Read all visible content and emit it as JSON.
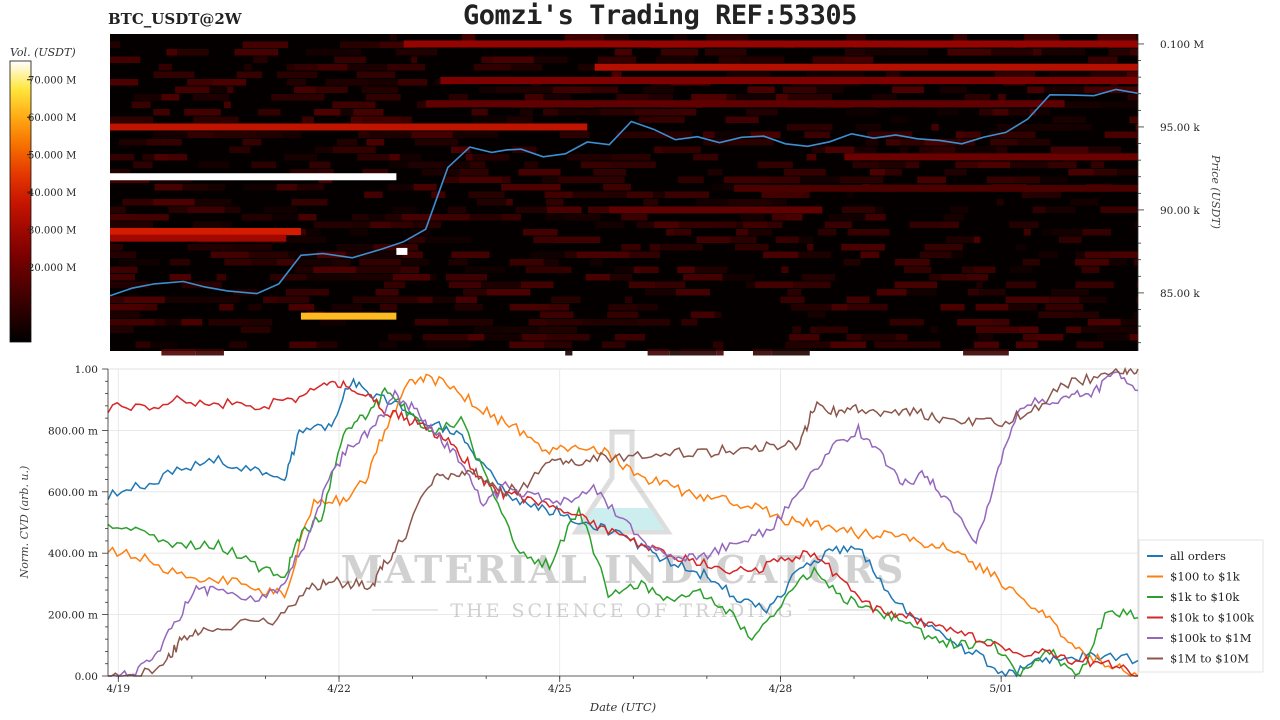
{
  "header": {
    "symbol": "BTC_USDT@2W",
    "title": "Gomzi's Trading REF:53305"
  },
  "watermark": {
    "line1": "MATERIAL INDICATORS",
    "line2": "THE SCIENCE OF TRADING"
  },
  "colors": {
    "all_orders": "#1f77b4",
    "b100_1k": "#ff7f0e",
    "b1k_10k": "#2ca02c",
    "b10k_100k": "#d62728",
    "b100k_1m": "#9467bd",
    "b1m_10m": "#8c564b",
    "price_line": "#3d8fd1",
    "heatmap_bg": "#050000"
  },
  "chart_data": [
    {
      "type": "heatmap",
      "title": "Gomzi's Trading REF:53305",
      "colorbar_label": "Vol. (USDT)",
      "colorbar_ticks": [
        "70.000 M",
        "60.000 M",
        "50.000 M",
        "40.000 M",
        "30.000 M",
        "20.000 M"
      ],
      "colorbar_values": [
        70,
        60,
        50,
        40,
        30,
        20
      ],
      "colorbar_range": [
        0,
        75
      ],
      "ylabel": "Price (USDT)",
      "yaxis_side": "right",
      "ylim": [
        81500,
        100600
      ],
      "y_ticks": [
        {
          "value": 100000,
          "label": "0.100 M"
        },
        {
          "value": 95000,
          "label": "95.00 k"
        },
        {
          "value": 90000,
          "label": "90.00 k"
        },
        {
          "value": 85000,
          "label": "85.00 k"
        }
      ],
      "x_range_days": [
        0,
        14
      ],
      "price_line": {
        "t": [
          0.0,
          0.3,
          0.6,
          1.0,
          1.3,
          1.6,
          2.0,
          2.3,
          2.6,
          2.9,
          3.3,
          3.7,
          4.0,
          4.3,
          4.6,
          4.9,
          5.2,
          5.4,
          5.6,
          5.9,
          6.2,
          6.5,
          6.8,
          7.1,
          7.4,
          7.7,
          8.0,
          8.3,
          8.6,
          8.9,
          9.2,
          9.5,
          9.8,
          10.1,
          10.4,
          10.7,
          11.0,
          11.3,
          11.6,
          11.9,
          12.2,
          12.5,
          12.8,
          13.1,
          13.4,
          13.7,
          14.0
        ],
        "price": [
          84800,
          85300,
          85500,
          85600,
          85400,
          85200,
          84900,
          85500,
          87300,
          87400,
          87200,
          87600,
          88100,
          88900,
          92500,
          93800,
          93500,
          93600,
          93700,
          93200,
          93300,
          94100,
          94000,
          95300,
          94800,
          94300,
          94500,
          94100,
          94400,
          94500,
          94000,
          93800,
          94100,
          94600,
          94300,
          94500,
          94300,
          94200,
          93900,
          94300,
          94600,
          95400,
          96900,
          97000,
          96800,
          97300,
          97000
        ]
      },
      "bands": [
        {
          "price": 92000,
          "from": 0.0,
          "to": 3.9,
          "level": 75
        },
        {
          "price": 88700,
          "from": 0.0,
          "to": 2.6,
          "level": 40
        },
        {
          "price": 88300,
          "from": 0.0,
          "to": 2.4,
          "level": 30
        },
        {
          "price": 83600,
          "from": 2.6,
          "to": 3.9,
          "level": 62
        },
        {
          "price": 87500,
          "from": 3.9,
          "to": 4.05,
          "level": 75
        },
        {
          "price": 95000,
          "from": 0.0,
          "to": 6.5,
          "level": 36
        },
        {
          "price": 98600,
          "from": 6.6,
          "to": 14.0,
          "level": 34
        },
        {
          "price": 100000,
          "from": 4.0,
          "to": 14.0,
          "level": 28
        },
        {
          "price": 97800,
          "from": 4.5,
          "to": 14.0,
          "level": 24
        },
        {
          "price": 93200,
          "from": 10.0,
          "to": 14.0,
          "level": 20
        },
        {
          "price": 90000,
          "from": 6.8,
          "to": 9.7,
          "level": 18
        },
        {
          "price": 91300,
          "from": 8.5,
          "to": 14.0,
          "level": 14
        },
        {
          "price": 96400,
          "from": 4.3,
          "to": 13.0,
          "level": 18
        }
      ]
    },
    {
      "type": "line",
      "ylabel": "Norm. CVD (arb. u.)",
      "xlabel": "Date (UTC)",
      "ylim": [
        0,
        1
      ],
      "y_ticks": [
        {
          "value": 0,
          "label": "0.00"
        },
        {
          "value": 0.2,
          "label": "200.00 m"
        },
        {
          "value": 0.4,
          "label": "400.00 m"
        },
        {
          "value": 0.6,
          "label": "600.00 m"
        },
        {
          "value": 0.8,
          "label": "800.00 m"
        },
        {
          "value": 1.0,
          "label": "1.00"
        }
      ],
      "x_ticks": [
        {
          "t": 0.14,
          "label": "4/19"
        },
        {
          "t": 3.14,
          "label": "4/22"
        },
        {
          "t": 6.14,
          "label": "4/25"
        },
        {
          "t": 9.14,
          "label": "4/28"
        },
        {
          "t": 12.14,
          "label": "5/01"
        }
      ],
      "x_range_days": [
        0,
        14
      ],
      "legend_position": "right",
      "series": [
        {
          "name": "all orders",
          "color_key": "all_orders",
          "t": [
            0,
            0.5,
            1,
            1.5,
            2,
            2.4,
            2.6,
            3.0,
            3.3,
            3.6,
            4.0,
            4.3,
            4.7,
            5.0,
            5.4,
            5.8,
            6.2,
            6.6,
            7.0,
            7.4,
            7.8,
            8.2,
            8.6,
            9.0,
            9.4,
            9.8,
            10.2,
            10.6,
            11.0,
            11.4,
            11.8,
            12.2,
            12.6,
            13.0,
            13.4,
            14.0
          ],
          "values": [
            0.59,
            0.62,
            0.68,
            0.7,
            0.67,
            0.65,
            0.79,
            0.81,
            0.96,
            0.92,
            0.87,
            0.83,
            0.8,
            0.72,
            0.59,
            0.55,
            0.53,
            0.49,
            0.46,
            0.4,
            0.36,
            0.32,
            0.24,
            0.22,
            0.35,
            0.4,
            0.42,
            0.28,
            0.18,
            0.12,
            0.07,
            0.0,
            0.04,
            0.06,
            0.07,
            0.05
          ]
        },
        {
          "name": "$100 to $1k",
          "color_key": "b100_1k",
          "t": [
            0,
            0.5,
            1,
            1.5,
            2,
            2.4,
            2.8,
            3.2,
            3.5,
            3.8,
            4.1,
            4.4,
            4.8,
            5.2,
            5.6,
            6.0,
            6.4,
            6.8,
            7.2,
            7.6,
            8.0,
            8.4,
            8.8,
            9.2,
            9.6,
            10.0,
            10.4,
            10.8,
            11.2,
            11.6,
            12.0,
            12.4,
            12.8,
            13.2,
            13.6,
            14.0
          ],
          "values": [
            0.41,
            0.38,
            0.33,
            0.31,
            0.29,
            0.26,
            0.58,
            0.57,
            0.64,
            0.82,
            0.96,
            0.97,
            0.92,
            0.85,
            0.8,
            0.73,
            0.75,
            0.73,
            0.65,
            0.62,
            0.58,
            0.57,
            0.55,
            0.51,
            0.5,
            0.47,
            0.46,
            0.45,
            0.43,
            0.4,
            0.33,
            0.26,
            0.18,
            0.08,
            0.04,
            0.0
          ]
        },
        {
          "name": "$1k to $10k",
          "color_key": "b1k_10k",
          "t": [
            0,
            0.5,
            1,
            1.5,
            2,
            2.4,
            2.6,
            2.9,
            3.2,
            3.5,
            3.8,
            4.1,
            4.4,
            4.8,
            5.2,
            5.6,
            6.0,
            6.4,
            6.8,
            7.2,
            7.6,
            8.0,
            8.4,
            8.8,
            9.2,
            9.6,
            10.0,
            10.4,
            10.8,
            11.2,
            11.6,
            12.0,
            12.4,
            12.8,
            13.2,
            13.6,
            14.0
          ],
          "values": [
            0.5,
            0.47,
            0.42,
            0.43,
            0.36,
            0.32,
            0.45,
            0.52,
            0.78,
            0.85,
            0.93,
            0.85,
            0.8,
            0.83,
            0.62,
            0.4,
            0.36,
            0.55,
            0.27,
            0.3,
            0.25,
            0.28,
            0.22,
            0.12,
            0.25,
            0.35,
            0.25,
            0.22,
            0.18,
            0.12,
            0.1,
            0.12,
            0.0,
            0.08,
            0.0,
            0.22,
            0.19
          ]
        },
        {
          "name": "$10k to $100k",
          "color_key": "b10k_100k",
          "t": [
            0,
            0.5,
            1,
            1.5,
            2,
            2.5,
            2.9,
            3.2,
            3.5,
            3.8,
            4.1,
            4.4,
            4.7,
            5.0,
            5.3,
            5.6,
            6.0,
            6.4,
            6.8,
            7.2,
            7.6,
            8.0,
            8.4,
            8.8,
            9.2,
            9.6,
            10.0,
            10.4,
            10.8,
            11.2,
            11.6,
            12.0,
            12.4,
            12.8,
            13.2,
            13.6,
            14.0
          ],
          "values": [
            0.87,
            0.88,
            0.9,
            0.89,
            0.88,
            0.9,
            0.96,
            0.95,
            0.92,
            0.86,
            0.83,
            0.8,
            0.75,
            0.66,
            0.6,
            0.58,
            0.55,
            0.52,
            0.47,
            0.43,
            0.4,
            0.37,
            0.35,
            0.34,
            0.38,
            0.4,
            0.3,
            0.22,
            0.2,
            0.16,
            0.13,
            0.11,
            0.08,
            0.07,
            0.05,
            0.04,
            0.0
          ]
        },
        {
          "name": "$100k to $1M",
          "color_key": "b100k_1m",
          "t": [
            0,
            0.3,
            0.6,
            0.9,
            1.2,
            1.5,
            2.0,
            2.4,
            2.7,
            3.0,
            3.3,
            3.6,
            3.9,
            4.2,
            4.5,
            4.8,
            5.1,
            5.4,
            5.8,
            6.2,
            6.6,
            7.0,
            7.4,
            7.8,
            8.2,
            8.6,
            9.0,
            9.4,
            9.8,
            10.2,
            10.5,
            10.8,
            11.1,
            11.4,
            11.8,
            12.1,
            12.4,
            12.8,
            13.1,
            13.4,
            13.7,
            14.0
          ],
          "values": [
            0.0,
            0.0,
            0.06,
            0.16,
            0.29,
            0.27,
            0.24,
            0.3,
            0.45,
            0.65,
            0.75,
            0.8,
            0.92,
            0.86,
            0.78,
            0.7,
            0.55,
            0.62,
            0.58,
            0.57,
            0.62,
            0.5,
            0.42,
            0.38,
            0.4,
            0.44,
            0.48,
            0.6,
            0.74,
            0.8,
            0.72,
            0.62,
            0.66,
            0.58,
            0.43,
            0.68,
            0.88,
            0.9,
            0.91,
            0.92,
            1.0,
            0.93
          ]
        },
        {
          "name": "$1M to $10M",
          "color_key": "b1m_10m",
          "t": [
            0,
            0.4,
            0.8,
            1.0,
            1.3,
            1.8,
            2.3,
            2.7,
            3.0,
            3.3,
            3.6,
            3.8,
            4.0,
            4.4,
            4.7,
            5.0,
            5.3,
            5.6,
            6.0,
            6.3,
            6.7,
            7.2,
            7.7,
            8.2,
            8.6,
            9.0,
            9.4,
            9.6,
            9.9,
            10.2,
            10.6,
            11.0,
            11.4,
            11.8,
            12.2,
            12.6,
            13.0,
            13.4,
            13.8,
            14.0
          ],
          "values": [
            0.0,
            0.0,
            0.05,
            0.12,
            0.16,
            0.17,
            0.18,
            0.28,
            0.31,
            0.3,
            0.3,
            0.38,
            0.44,
            0.64,
            0.65,
            0.66,
            0.6,
            0.61,
            0.69,
            0.7,
            0.71,
            0.72,
            0.73,
            0.73,
            0.74,
            0.75,
            0.75,
            0.88,
            0.86,
            0.87,
            0.86,
            0.86,
            0.83,
            0.83,
            0.83,
            0.87,
            0.95,
            0.97,
            1.0,
            1.0
          ]
        }
      ]
    }
  ]
}
